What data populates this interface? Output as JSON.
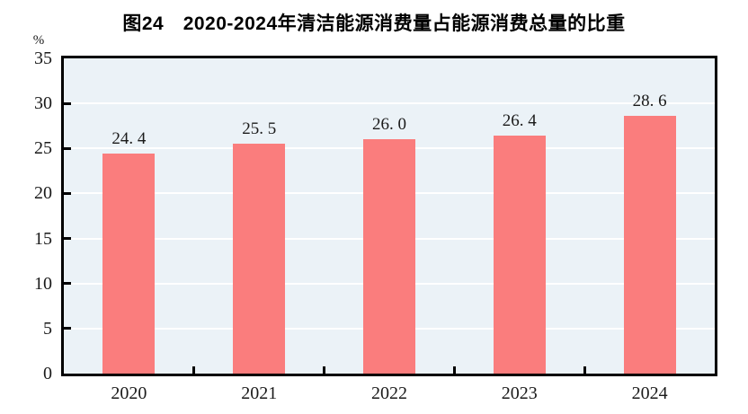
{
  "chart_data": {
    "type": "bar",
    "title": "图24　2020-2024年清洁能源消费量占能源消费总量的比重",
    "categories": [
      "2020",
      "2021",
      "2022",
      "2023",
      "2024"
    ],
    "values": [
      24.4,
      25.5,
      26.0,
      26.4,
      28.6
    ],
    "value_labels": [
      "24. 4",
      "25. 5",
      "26. 0",
      "26. 4",
      "28. 6"
    ],
    "xlabel": "",
    "ylabel": "%",
    "ylim": [
      0,
      35
    ],
    "yticks": [
      0,
      5,
      10,
      15,
      20,
      25,
      30,
      35
    ],
    "grid": true,
    "legend": false,
    "colors": {
      "bar": "#fa7d7d",
      "plot_background": "#ebf2f7",
      "gridline": "#ffffff",
      "axis_frame": "#000000",
      "text": "#1a1a1a"
    }
  }
}
